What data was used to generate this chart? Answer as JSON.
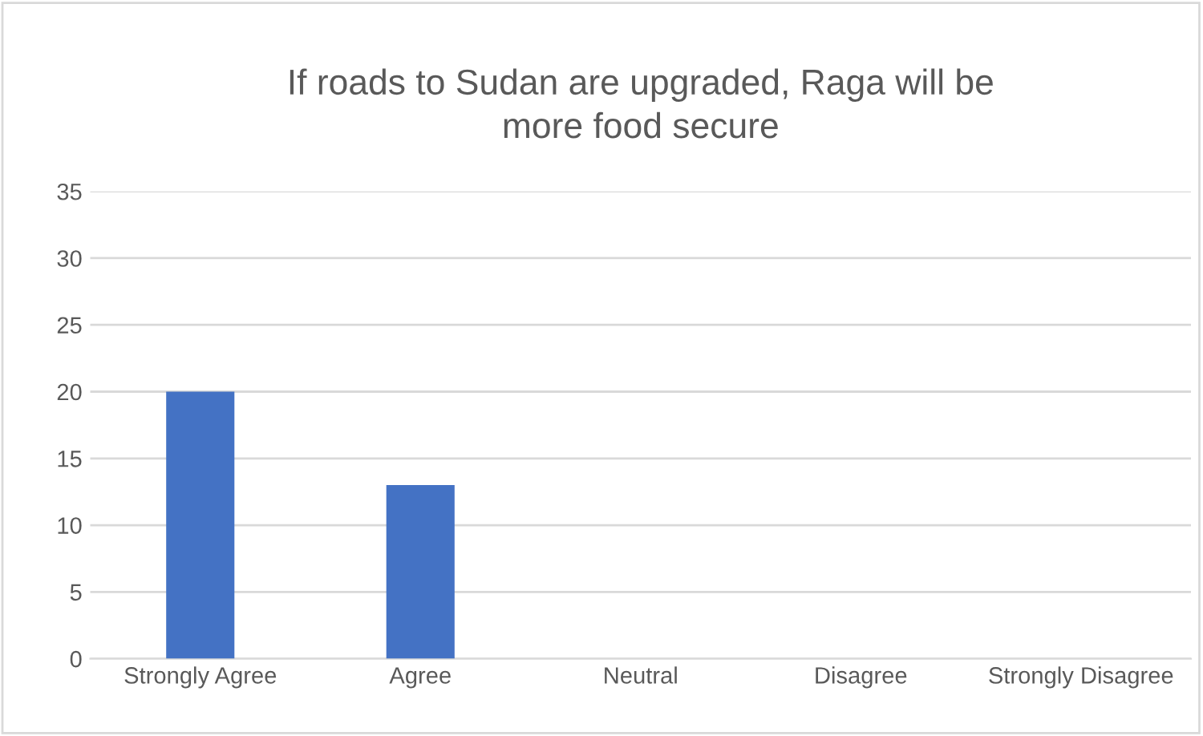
{
  "chart_data": {
    "type": "bar",
    "title": "If roads to Sudan are upgraded, Raga will be\nmore food secure",
    "categories": [
      "Strongly Agree",
      "Agree",
      "Neutral",
      "Disagree",
      "Strongly Disagree"
    ],
    "values": [
      20,
      13,
      0,
      0,
      0
    ],
    "color": "#4472c4",
    "ylim": [
      0,
      35
    ],
    "yticks": [
      0,
      5,
      10,
      15,
      20,
      25,
      30,
      35
    ],
    "grid": "y",
    "legend": false
  }
}
